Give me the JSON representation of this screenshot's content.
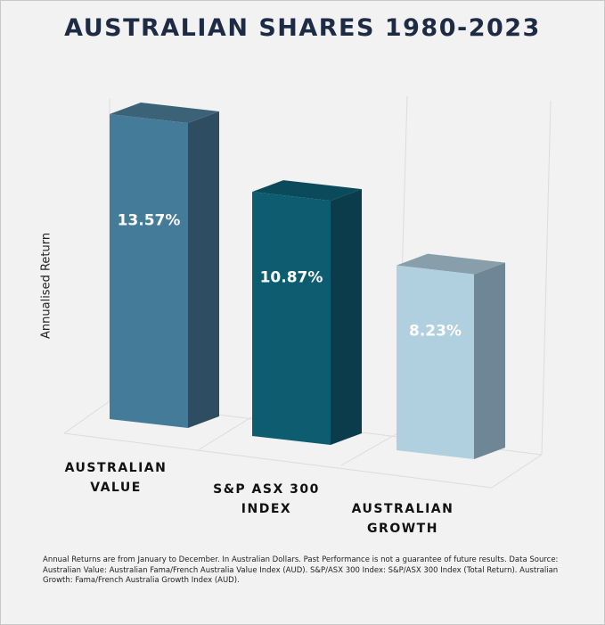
{
  "chart_data": {
    "type": "bar",
    "title": "AUSTRALIAN SHARES 1980-2023",
    "ylabel": "Annualised Return",
    "xlabel": "",
    "categories": [
      [
        "AUSTRALIAN",
        "VALUE"
      ],
      [
        "S&P ASX 300",
        "INDEX"
      ],
      [
        "AUSTRALIAN",
        "GROWTH"
      ]
    ],
    "values": [
      13.57,
      10.87,
      8.23
    ],
    "data_labels": [
      "13.57%",
      "10.87%",
      "8.23%"
    ],
    "colors": {
      "front": [
        "#447b98",
        "#0e5c70",
        "#b0cfdf"
      ],
      "side": [
        "#2e4d61",
        "#0a3c4c",
        "#6e8696"
      ],
      "top": [
        "#3c6278",
        "#0a4a5a",
        "#889fab"
      ]
    },
    "ylim": [
      0,
      16
    ],
    "grid": false,
    "legend": "none"
  },
  "footnote": "Annual Returns are from January to December. In Australian Dollars. Past Performance is not a guarantee of future results. Data Source: Australian Value: Australian Fama/French Australia Value Index (AUD). S&P/ASX 300 Index: S&P/ASX 300 Index (Total Return). Australian Growth: Fama/French Australia Growth Index (AUD)."
}
